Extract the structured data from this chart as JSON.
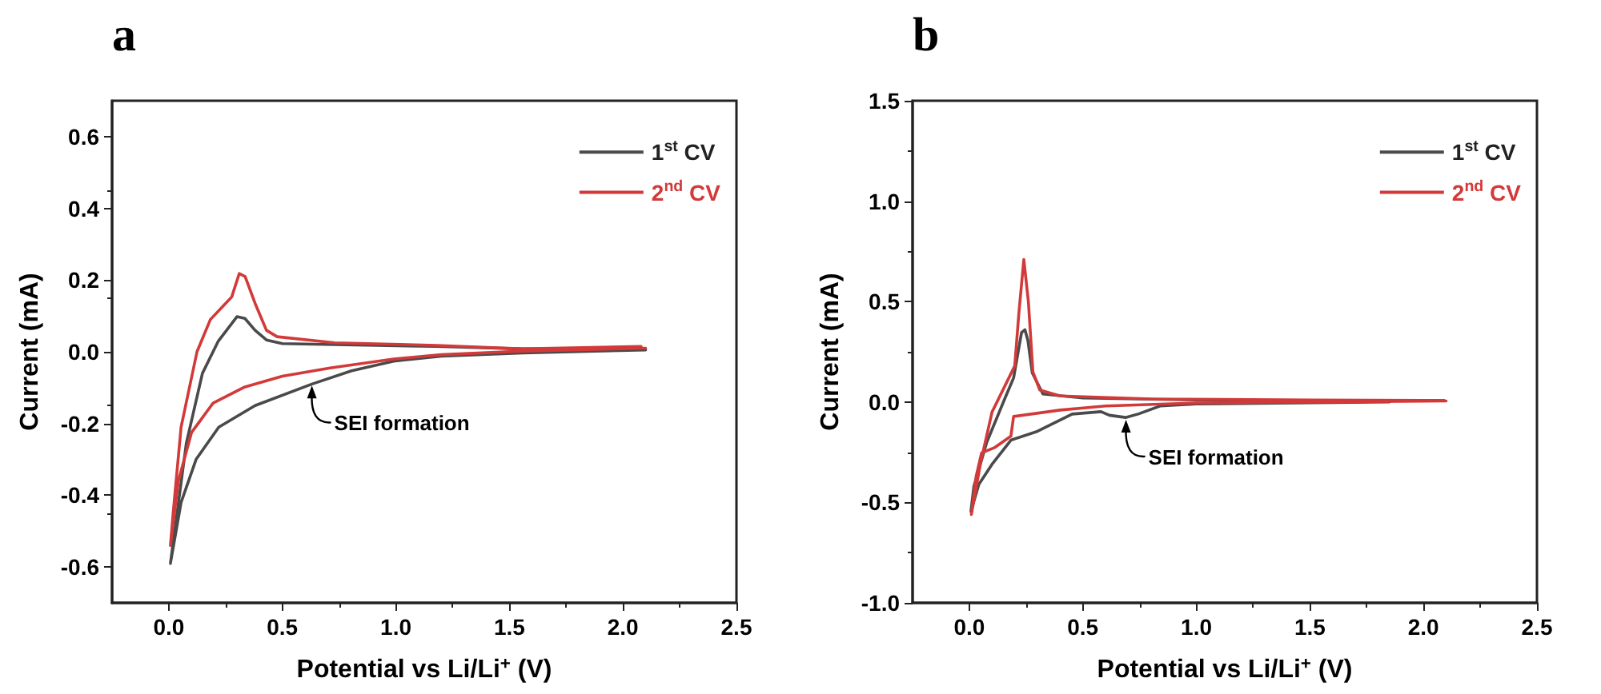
{
  "chart_data": [
    {
      "type": "line",
      "title": "a",
      "xlabel": "Potential vs Li/Li$^{+}$ (V)",
      "ylabel": "Current (mA)",
      "legend": "top right",
      "grid": false,
      "marker": "none",
      "line_style": "solid",
      "xlim": [
        -0.25,
        2.5
      ],
      "xticks": [
        {
          "value": 0,
          "label": "0.0"
        },
        {
          "value": 0.5,
          "label": "0.5"
        },
        {
          "value": 1,
          "label": "1.0"
        },
        {
          "value": 1.5,
          "label": "1.5"
        },
        {
          "value": 2,
          "label": "2.0"
        },
        {
          "value": 2.5,
          "label": "2.5"
        }
      ],
      "ylim": [
        -0.7,
        0.7
      ],
      "yticks": [
        {
          "value": -0.6,
          "label": "-0.6"
        },
        {
          "value": -0.4,
          "label": "-0.4"
        },
        {
          "value": -0.2,
          "label": "-0.2"
        },
        {
          "value": 0,
          "label": "0.0"
        },
        {
          "value": 0.2,
          "label": "0.2"
        },
        {
          "value": 0.4,
          "label": "0.4"
        },
        {
          "value": 0.6,
          "label": "0.6"
        }
      ],
      "annotations": [
        {
          "text": "SEI formation",
          "x": 0.63,
          "y": -0.09
        }
      ],
      "series": [
        {
          "name": "1$^{st}$ CV",
          "color": "#4a4a4a",
          "x": [
            2.1,
            1.56,
            1.2,
            0.99,
            0.805,
            0.63,
            0.38,
            0.22,
            0.12,
            0.054,
            0.007,
            0.03,
            0.077,
            0.148,
            0.218,
            0.3,
            0.335,
            0.38,
            0.43,
            0.5,
            0.73,
            1.18,
            1.56,
            2.08
          ],
          "values": [
            0.005,
            -0.003,
            -0.012,
            -0.026,
            -0.053,
            -0.09,
            -0.15,
            -0.21,
            -0.3,
            -0.42,
            -0.59,
            -0.48,
            -0.255,
            -0.06,
            0.03,
            0.098,
            0.093,
            0.06,
            0.033,
            0.023,
            0.02,
            0.015,
            0.008,
            0.008
          ]
        },
        {
          "name": "2$^{nd}$ CV",
          "color": "#d23a3a",
          "x": [
            2.1,
            1.56,
            1.2,
            0.99,
            0.71,
            0.5,
            0.335,
            0.195,
            0.1,
            0.042,
            0.007,
            0.019,
            0.054,
            0.124,
            0.183,
            0.24,
            0.277,
            0.31,
            0.336,
            0.38,
            0.43,
            0.477,
            0.73,
            1.18,
            1.56,
            2.08
          ],
          "values": [
            0.01,
            0.002,
            -0.008,
            -0.02,
            -0.045,
            -0.068,
            -0.098,
            -0.143,
            -0.225,
            -0.36,
            -0.54,
            -0.45,
            -0.21,
            0.0,
            0.09,
            0.128,
            0.153,
            0.218,
            0.21,
            0.135,
            0.06,
            0.042,
            0.025,
            0.018,
            0.008,
            0.015
          ]
        }
      ]
    },
    {
      "type": "line",
      "title": "b",
      "xlabel": "Potential vs Li/Li$^{+}$ (V)",
      "ylabel": "Current (mA)",
      "legend": "top right",
      "grid": false,
      "marker": "none",
      "line_style": "solid",
      "xlim": [
        -0.25,
        2.5
      ],
      "xticks": [
        {
          "value": 0,
          "label": "0.0"
        },
        {
          "value": 0.5,
          "label": "0.5"
        },
        {
          "value": 1,
          "label": "1.0"
        },
        {
          "value": 1.5,
          "label": "1.5"
        },
        {
          "value": 2,
          "label": "2.0"
        },
        {
          "value": 2.5,
          "label": "2.5"
        }
      ],
      "ylim": [
        -1.0,
        1.5
      ],
      "yticks": [
        {
          "value": -1,
          "label": "-1.0"
        },
        {
          "value": -0.5,
          "label": "-0.5"
        },
        {
          "value": 0,
          "label": "0.0"
        },
        {
          "value": 0.5,
          "label": "0.5"
        },
        {
          "value": 1,
          "label": "1.0"
        },
        {
          "value": 1.5,
          "label": "1.5"
        }
      ],
      "annotations": [
        {
          "text": "SEI formation",
          "x": 0.69,
          "y": -0.08
        }
      ],
      "series": [
        {
          "name": "1$^{st}$ CV",
          "color": "#4a4a4a",
          "x": [
            1.85,
            1.0,
            0.84,
            0.746,
            0.688,
            0.617,
            0.58,
            0.453,
            0.3,
            0.183,
            0.1,
            0.042,
            0.007,
            0.02,
            0.077,
            0.16,
            0.195,
            0.23,
            0.245,
            0.258,
            0.277,
            0.324,
            0.5,
            1.0,
            1.85
          ],
          "values": [
            0.0,
            -0.01,
            -0.02,
            -0.059,
            -0.077,
            -0.066,
            -0.048,
            -0.06,
            -0.146,
            -0.19,
            -0.31,
            -0.41,
            -0.545,
            -0.42,
            -0.2,
            0.027,
            0.12,
            0.346,
            0.36,
            0.306,
            0.146,
            0.04,
            0.02,
            0.01,
            0.005
          ]
        },
        {
          "name": "2$^{nd}$ CV",
          "color": "#d23a3a",
          "x": [
            2.1,
            1.0,
            0.6,
            0.4,
            0.195,
            0.183,
            0.113,
            0.054,
            0.03,
            0.009,
            0.05,
            0.1,
            0.2,
            0.218,
            0.24,
            0.26,
            0.28,
            0.31,
            0.4,
            0.8,
            1.5,
            2.09
          ],
          "values": [
            0.005,
            -0.005,
            -0.02,
            -0.04,
            -0.072,
            -0.17,
            -0.226,
            -0.253,
            -0.37,
            -0.56,
            -0.3,
            -0.05,
            0.18,
            0.44,
            0.71,
            0.5,
            0.15,
            0.06,
            0.03,
            0.015,
            0.01,
            0.008
          ]
        }
      ]
    }
  ]
}
